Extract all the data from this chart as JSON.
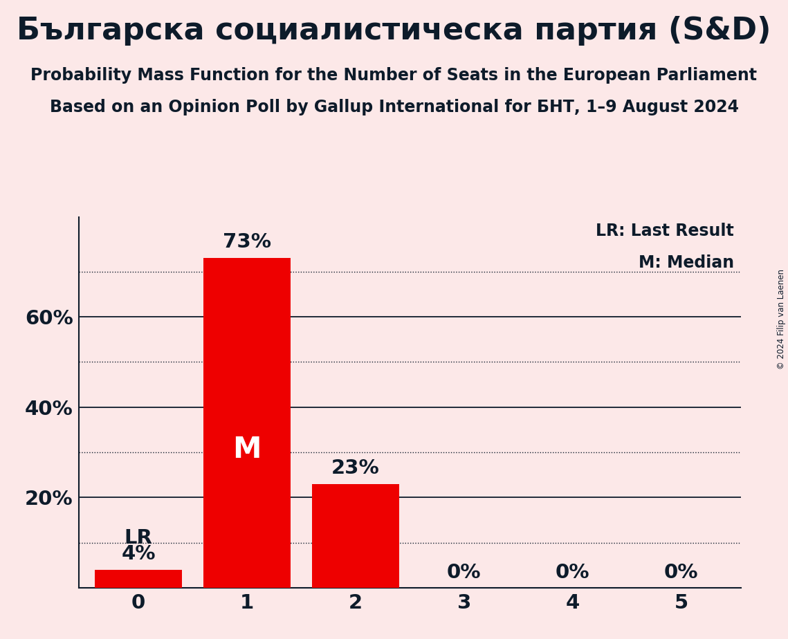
{
  "title": "Българска социалистическа партия (S&D)",
  "subtitle1": "Probability Mass Function for the Number of Seats in the European Parliament",
  "subtitle2": "Based on an Opinion Poll by Gallup International for БНТ, 1–9 August 2024",
  "categories": [
    0,
    1,
    2,
    3,
    4,
    5
  ],
  "values": [
    0.04,
    0.73,
    0.23,
    0.0,
    0.0,
    0.0
  ],
  "bar_color": "#ee0000",
  "background_color": "#fce8e8",
  "text_color": "#0d1b2a",
  "bar_labels": [
    "4%",
    "73%",
    "23%",
    "0%",
    "0%",
    "0%"
  ],
  "median_bar": 1,
  "median_label": "M",
  "lr_bar": 0,
  "lr_label": "LR",
  "legend_lr": "LR: Last Result",
  "legend_m": "M: Median",
  "yticks": [
    0.2,
    0.4,
    0.6
  ],
  "ytick_labels": [
    "20%",
    "40%",
    "60%"
  ],
  "ylim": [
    0,
    0.82
  ],
  "copyright": "© 2024 Filip van Laenen",
  "dotted_grid_levels": [
    0.1,
    0.3,
    0.5,
    0.7
  ],
  "solid_grid_levels": [
    0.0,
    0.2,
    0.4,
    0.6
  ],
  "title_fontsize": 32,
  "subtitle_fontsize": 17,
  "bar_label_fontsize": 21,
  "tick_fontsize": 21,
  "legend_fontsize": 17,
  "median_fontsize": 30
}
